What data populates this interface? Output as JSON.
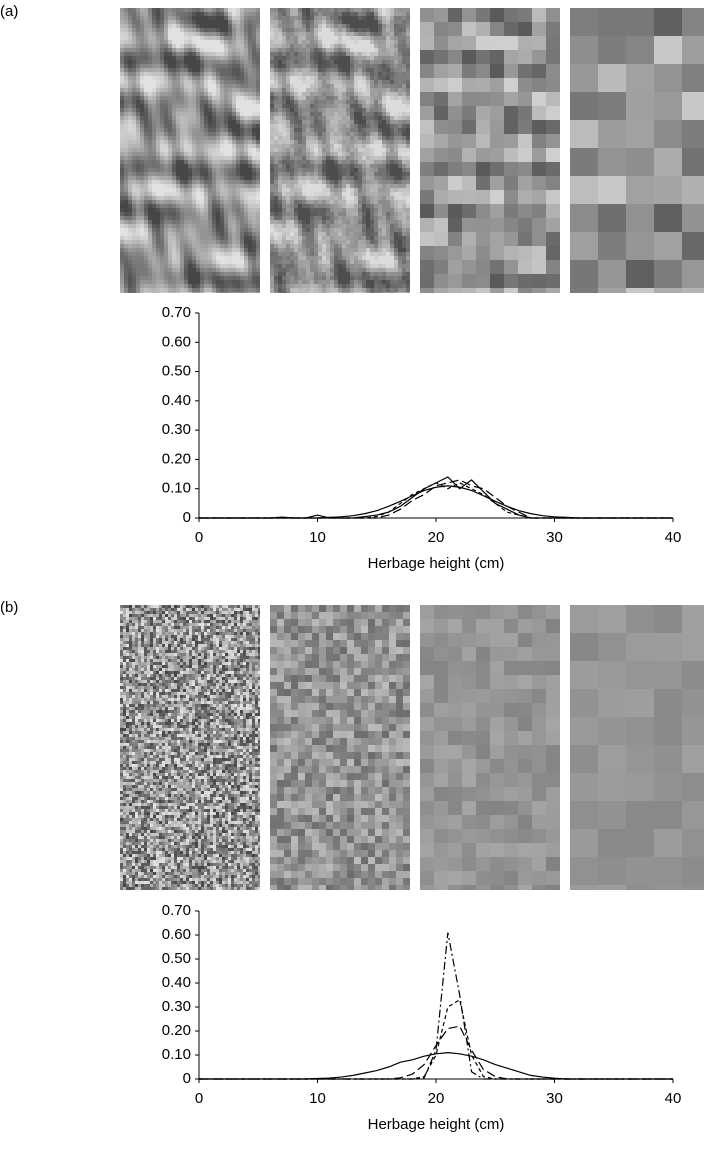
{
  "chart_data": [
    {
      "type": "line",
      "panel_label": "(a)",
      "x_label": "Herbage height (cm)",
      "x": [
        0,
        1,
        2,
        3,
        4,
        5,
        6,
        7,
        8,
        9,
        10,
        11,
        12,
        13,
        14,
        15,
        16,
        17,
        18,
        19,
        20,
        21,
        22,
        23,
        24,
        25,
        26,
        27,
        28,
        29,
        30,
        31,
        32,
        33,
        34,
        35,
        36,
        37,
        38,
        39,
        40
      ],
      "series": [
        {
          "color": "#000000",
          "dash": "solid",
          "values": [
            0,
            0,
            0,
            0,
            0,
            0,
            0,
            0,
            0,
            0,
            0,
            0.002,
            0.004,
            0.008,
            0.015,
            0.025,
            0.04,
            0.057,
            0.076,
            0.094,
            0.105,
            0.11,
            0.105,
            0.094,
            0.076,
            0.057,
            0.04,
            0.025,
            0.015,
            0.008,
            0.004,
            0.002,
            0,
            0,
            0,
            0,
            0,
            0,
            0,
            0,
            0
          ]
        },
        {
          "color": "#000000",
          "dash": "solid",
          "values": [
            0,
            0,
            0,
            0,
            0,
            0,
            0,
            0.003,
            0,
            0,
            0.01,
            0,
            0,
            0,
            0.005,
            0.01,
            0.02,
            0.04,
            0.07,
            0.1,
            0.12,
            0.14,
            0.1,
            0.13,
            0.09,
            0.05,
            0.03,
            0.01,
            0,
            0,
            0,
            0,
            0,
            0,
            0,
            0,
            0,
            0,
            0,
            0,
            0
          ]
        },
        {
          "color": "#000000",
          "dash": "long",
          "values": [
            0,
            0,
            0,
            0,
            0,
            0,
            0,
            0,
            0,
            0,
            0,
            0,
            0,
            0,
            0,
            0,
            0.01,
            0.03,
            0.06,
            0.08,
            0.11,
            0.12,
            0.13,
            0.11,
            0.1,
            0.07,
            0.04,
            0.02,
            0,
            0,
            0,
            0,
            0,
            0,
            0,
            0,
            0,
            0,
            0,
            0,
            0
          ]
        },
        {
          "color": "#000000",
          "dash": "short",
          "values": [
            0,
            0,
            0,
            0,
            0,
            0,
            0,
            0,
            0,
            0,
            0,
            0,
            0,
            0,
            0,
            0.005,
            0.02,
            0.05,
            0.08,
            0.1,
            0.12,
            0.1,
            0.12,
            0.1,
            0.08,
            0.05,
            0.02,
            0.01,
            0,
            0,
            0,
            0,
            0,
            0,
            0,
            0,
            0,
            0,
            0,
            0,
            0
          ]
        }
      ],
      "xlim": [
        0,
        40
      ],
      "xticks": [
        0,
        10,
        20,
        30,
        40
      ],
      "ylim": [
        0,
        0.7
      ],
      "yticks": [
        0,
        {
          "value": 0.1,
          "label": "0.10"
        },
        {
          "value": 0.2,
          "label": "0.20"
        },
        {
          "value": 0.3,
          "label": "0.30"
        },
        {
          "value": 0.4,
          "label": "0.40"
        },
        {
          "value": 0.5,
          "label": "0.50"
        },
        {
          "value": 0.6,
          "label": "0.60"
        },
        {
          "value": 0.7,
          "label": "0.70"
        }
      ],
      "grid": false
    },
    {
      "type": "line",
      "panel_label": "(b)",
      "x_label": "Herbage height (cm)",
      "x": [
        0,
        1,
        2,
        3,
        4,
        5,
        6,
        7,
        8,
        9,
        10,
        11,
        12,
        13,
        14,
        15,
        16,
        17,
        18,
        19,
        20,
        21,
        22,
        23,
        24,
        25,
        26,
        27,
        28,
        29,
        30,
        31,
        32,
        33,
        34,
        35,
        36,
        37,
        38,
        39,
        40
      ],
      "series": [
        {
          "color": "#000000",
          "dash": "solid",
          "values": [
            0,
            0,
            0,
            0,
            0,
            0,
            0,
            0,
            0,
            0,
            0.002,
            0.004,
            0.008,
            0.015,
            0.025,
            0.035,
            0.05,
            0.07,
            0.08,
            0.095,
            0.105,
            0.11,
            0.105,
            0.095,
            0.08,
            0.06,
            0.045,
            0.03,
            0.015,
            0.008,
            0.003,
            0,
            0,
            0,
            0,
            0,
            0,
            0,
            0,
            0,
            0
          ]
        },
        {
          "color": "#000000",
          "dash": "long",
          "values": [
            0,
            0,
            0,
            0,
            0,
            0,
            0,
            0,
            0,
            0,
            0,
            0,
            0,
            0,
            0,
            0,
            0,
            0.005,
            0.02,
            0.06,
            0.14,
            0.21,
            0.22,
            0.12,
            0.04,
            0.01,
            0,
            0,
            0,
            0,
            0,
            0,
            0,
            0,
            0,
            0,
            0,
            0,
            0,
            0,
            0
          ]
        },
        {
          "color": "#000000",
          "dash": "dashdot",
          "values": [
            0,
            0,
            0,
            0,
            0,
            0,
            0,
            0,
            0,
            0,
            0,
            0,
            0,
            0,
            0,
            0,
            0,
            0,
            0,
            0.005,
            0.12,
            0.61,
            0.35,
            0.03,
            0,
            0,
            0,
            0,
            0,
            0,
            0,
            0,
            0,
            0,
            0,
            0,
            0,
            0,
            0,
            0,
            0
          ]
        },
        {
          "color": "#000000",
          "dash": "short",
          "values": [
            0,
            0,
            0,
            0,
            0,
            0,
            0,
            0,
            0,
            0,
            0,
            0,
            0,
            0,
            0,
            0,
            0,
            0,
            0,
            0.01,
            0.1,
            0.3,
            0.33,
            0.1,
            0.01,
            0,
            0,
            0,
            0,
            0,
            0,
            0,
            0,
            0,
            0,
            0,
            0,
            0,
            0,
            0,
            0
          ]
        }
      ],
      "xlim": [
        0,
        40
      ],
      "xticks": [
        0,
        10,
        20,
        30,
        40
      ],
      "ylim": [
        0,
        0.7
      ],
      "yticks": [
        0,
        {
          "value": 0.1,
          "label": "0.10"
        },
        {
          "value": 0.2,
          "label": "0.20"
        },
        {
          "value": 0.3,
          "label": "0.30"
        },
        {
          "value": 0.4,
          "label": "0.40"
        },
        {
          "value": 0.5,
          "label": "0.50"
        },
        {
          "value": 0.6,
          "label": "0.60"
        },
        {
          "value": 0.7,
          "label": "0.70"
        }
      ],
      "grid": false
    }
  ]
}
